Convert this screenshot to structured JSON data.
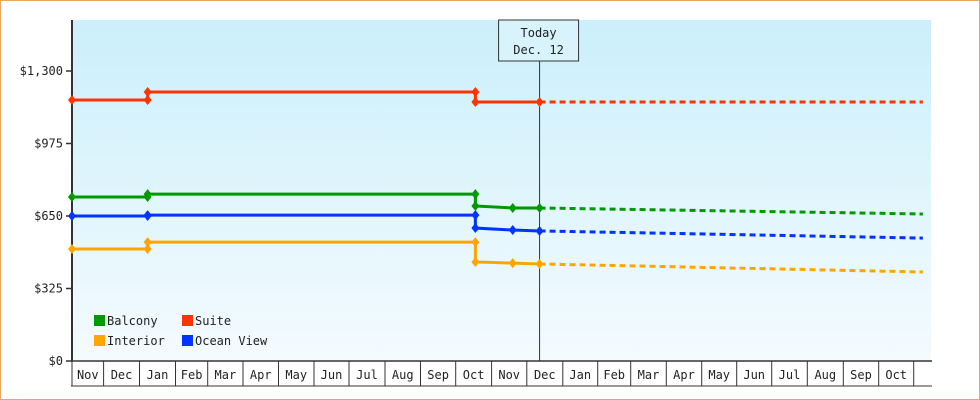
{
  "chart_data": {
    "type": "line",
    "title": "",
    "xlabel": "",
    "ylabel": "",
    "ylim": [
      0,
      1300
    ],
    "yticks": [
      "$0",
      "$325",
      "$650",
      "$975",
      "$1,300"
    ],
    "ytick_values": [
      0,
      325,
      650,
      975,
      1300
    ],
    "x_tick_labels": [
      "Nov",
      "Dec",
      "Jan",
      "Feb",
      "Mar",
      "Apr",
      "May",
      "Jun",
      "Jul",
      "Aug",
      "Sep",
      "Oct",
      "Nov",
      "Dec",
      "Jan",
      "Feb",
      "Mar",
      "Apr",
      "May",
      "Jun",
      "Jul",
      "Aug",
      "Sep",
      "Oct",
      ""
    ],
    "today": {
      "line1": "Today",
      "line2": "Dec. 12",
      "date": "Dec 12"
    },
    "legend_placement": "bottom-left",
    "grid": false,
    "series": [
      {
        "name": "Balcony",
        "color": "#009900",
        "history": [
          [
            "Nov 1",
            735
          ],
          [
            "Jan 8",
            735
          ],
          [
            "Jan 8",
            748
          ],
          [
            "Oct 18",
            748
          ],
          [
            "Oct 18",
            695
          ],
          [
            "Nov 19",
            686
          ],
          [
            "Dec 12",
            686
          ]
        ],
        "forecast": [
          [
            "Dec 12",
            686
          ],
          [
            "Nov 16",
            659
          ]
        ]
      },
      {
        "name": "Suite",
        "color": "#ff3300",
        "history": [
          [
            "Nov 1",
            1170
          ],
          [
            "Jan 8",
            1170
          ],
          [
            "Jan 8",
            1206
          ],
          [
            "Oct 18",
            1206
          ],
          [
            "Oct 18",
            1161
          ],
          [
            "Dec 12",
            1161
          ]
        ],
        "forecast": [
          [
            "Dec 12",
            1161
          ],
          [
            "Nov 16",
            1161
          ]
        ]
      },
      {
        "name": "Interior",
        "color": "#ffa500",
        "history": [
          [
            "Nov 1",
            502
          ],
          [
            "Jan 8",
            502
          ],
          [
            "Jan 8",
            533
          ],
          [
            "Oct 18",
            533
          ],
          [
            "Oct 18",
            444
          ],
          [
            "Nov 19",
            439
          ],
          [
            "Dec 12",
            435
          ]
        ],
        "forecast": [
          [
            "Dec 12",
            435
          ],
          [
            "Nov 16",
            399
          ]
        ]
      },
      {
        "name": "Ocean View",
        "color": "#0033ff",
        "history": [
          [
            "Nov 1",
            650
          ],
          [
            "Jan 8",
            650
          ],
          [
            "Jan 8",
            654
          ],
          [
            "Oct 18",
            654
          ],
          [
            "Oct 18",
            596
          ],
          [
            "Nov 19",
            587
          ],
          [
            "Dec 12",
            583
          ]
        ],
        "forecast": [
          [
            "Dec 12",
            583
          ],
          [
            "Nov 16",
            551
          ]
        ]
      }
    ]
  }
}
